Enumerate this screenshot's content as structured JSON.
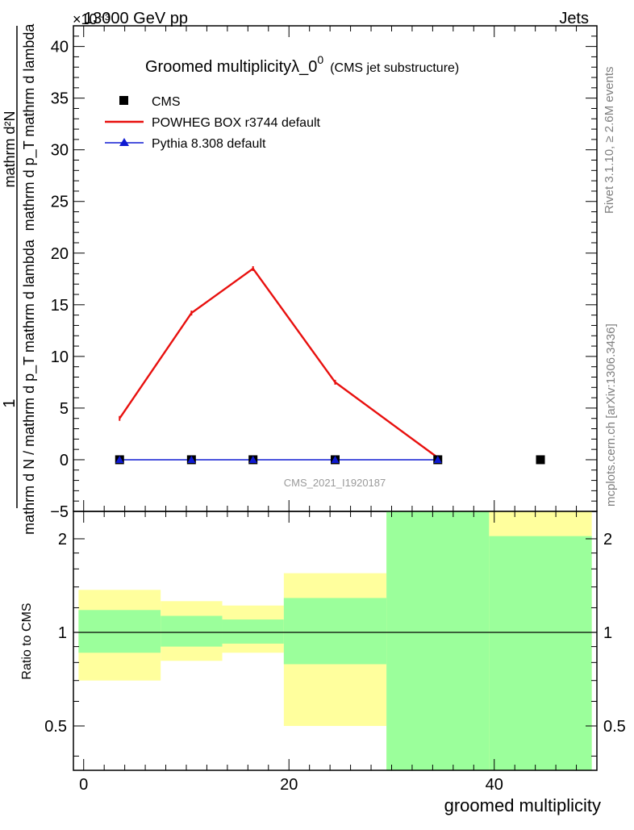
{
  "header": {
    "left": "13000 GeV pp",
    "right": "Jets"
  },
  "side_labels": {
    "rivet": "Rivet 3.1.10, ≥ 2.6M events",
    "mcplots": "mcplots.cern.ch [arXiv:1306.3436]"
  },
  "watermark": "CMS_2021_I1920187",
  "chart_data": [
    {
      "type": "line",
      "title": {
        "main": "Groomed multiplicityλ_0",
        "sup": "0",
        "sub": "(CMS jet substructure)"
      },
      "ylabel": {
        "lhs": "1",
        "lhs_den": "mathrm d N / mathrm d p_T mathrm d lambda",
        "rhs_num": "mathrm d²N",
        "rhs_den": "mathrm d p_T mathrm d lambda"
      },
      "y_multiplier": "×10⁻³",
      "xlim": [
        -1,
        50
      ],
      "ylim": [
        -5,
        42
      ],
      "yticks": [
        -5,
        0,
        5,
        10,
        15,
        20,
        25,
        30,
        35,
        40
      ],
      "yticklabels": [
        "−5",
        "0",
        "5",
        "10",
        "15",
        "20",
        "25",
        "30",
        "35",
        "40"
      ],
      "legend_position": "top-left",
      "series": [
        {
          "name": "CMS",
          "marker": "square",
          "color": "#000000",
          "x": [
            3.5,
            10.5,
            16.5,
            24.5,
            34.5,
            44.5
          ],
          "y": [
            0,
            0,
            0,
            0,
            0,
            0
          ]
        },
        {
          "name": "POWHEG BOX r3744 default",
          "marker": "line",
          "color": "#e8100e",
          "x": [
            3.5,
            10.5,
            16.5,
            24.5,
            34.5
          ],
          "y": [
            4.0,
            14.2,
            18.5,
            7.5,
            0.2
          ]
        },
        {
          "name": "Pythia 8.308 default",
          "marker": "triangle",
          "color": "#0f1ad2",
          "x": [
            3.5,
            10.5,
            16.5,
            24.5,
            34.5
          ],
          "y": [
            0,
            0,
            0,
            0,
            0
          ]
        }
      ]
    },
    {
      "type": "area",
      "ylabel": "Ratio to CMS",
      "xlabel": "groomed multiplicity",
      "xlim": [
        -1,
        50
      ],
      "ylim": [
        0.36,
        2.45
      ],
      "yscale": "log",
      "yticks": [
        0.5,
        1,
        2
      ],
      "yticklabels": [
        "0.5",
        "1",
        "2"
      ],
      "xticks": [
        0,
        20,
        40
      ],
      "xticklabels": [
        "0",
        "20",
        "40"
      ],
      "reference_line": 1,
      "bins": [
        {
          "x": [
            -0.5,
            7.5
          ],
          "inner": [
            0.86,
            1.18
          ],
          "outer": [
            0.7,
            1.37
          ]
        },
        {
          "x": [
            7.5,
            13.5
          ],
          "inner": [
            0.9,
            1.13
          ],
          "outer": [
            0.81,
            1.26
          ]
        },
        {
          "x": [
            13.5,
            19.5
          ],
          "inner": [
            0.92,
            1.1
          ],
          "outer": [
            0.86,
            1.22
          ]
        },
        {
          "x": [
            19.5,
            29.5
          ],
          "inner": [
            0.79,
            1.29
          ],
          "outer": [
            0.5,
            1.55
          ]
        },
        {
          "x": [
            29.5,
            39.5
          ],
          "inner": [
            0.36,
            2.45
          ],
          "outer": [
            0.36,
            2.45
          ]
        },
        {
          "x": [
            39.5,
            49.5
          ],
          "inner": [
            0.36,
            2.04
          ],
          "outer": [
            0.36,
            2.45
          ]
        }
      ],
      "colors": {
        "inner": "#9bff9b",
        "outer": "#ffff9d"
      }
    }
  ]
}
